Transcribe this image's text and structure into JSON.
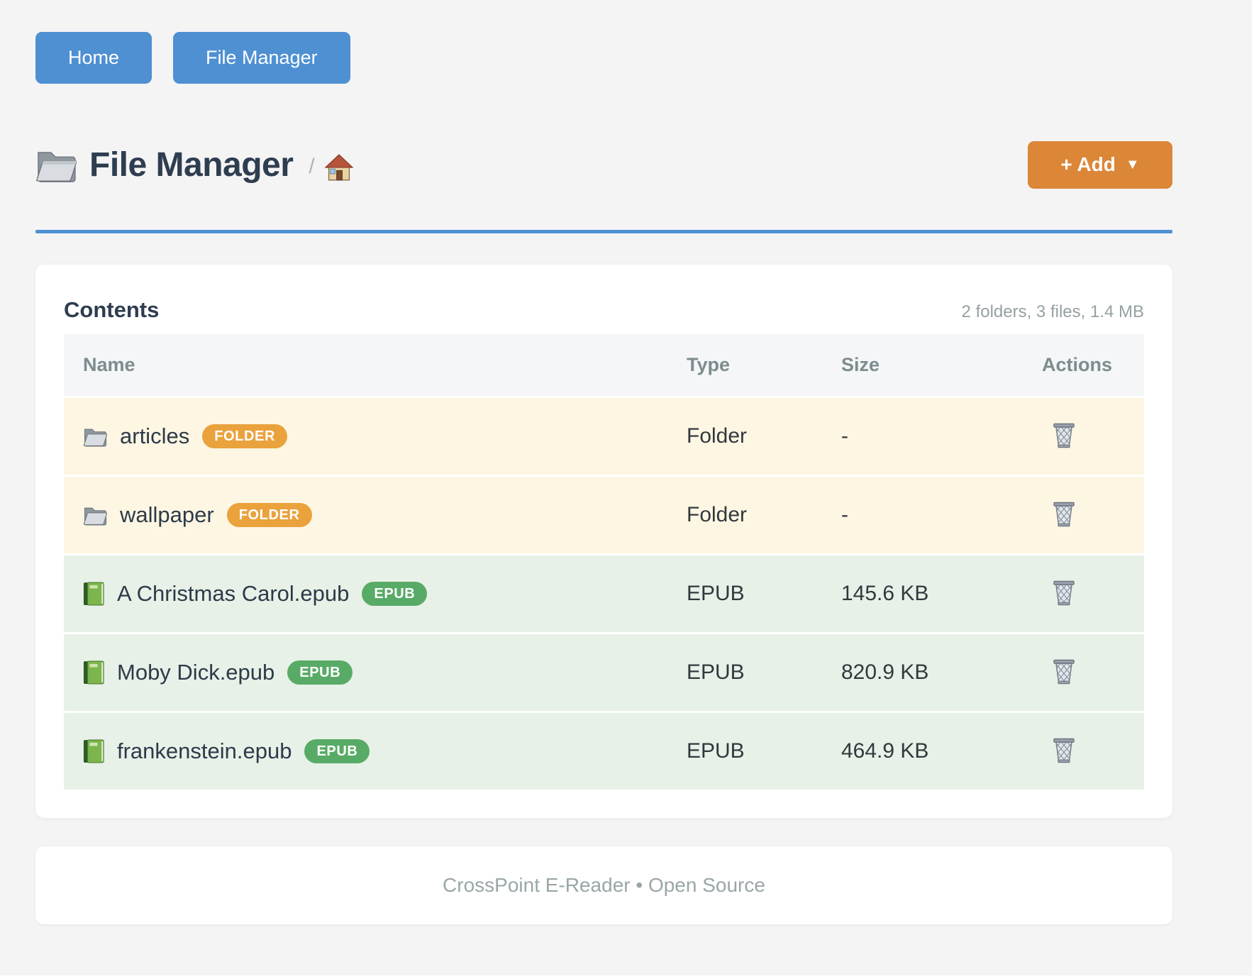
{
  "nav": {
    "home_label": "Home",
    "file_manager_label": "File Manager"
  },
  "header": {
    "title": "File Manager",
    "breadcrumb_separator": "/",
    "add_button_label": "+ Add",
    "add_button_caret": "▼"
  },
  "contents": {
    "title": "Contents",
    "summary": "2 folders, 3 files, 1.4 MB",
    "table": {
      "columns": [
        "Name",
        "Type",
        "Size",
        "Actions"
      ],
      "rows": [
        {
          "name": "articles",
          "badge": "FOLDER",
          "kind": "folder",
          "type": "Folder",
          "size": "-"
        },
        {
          "name": "wallpaper",
          "badge": "FOLDER",
          "kind": "folder",
          "type": "Folder",
          "size": "-"
        },
        {
          "name": "A Christmas Carol.epub",
          "badge": "EPUB",
          "kind": "epub",
          "type": "EPUB",
          "size": "145.6 KB"
        },
        {
          "name": "Moby Dick.epub",
          "badge": "EPUB",
          "kind": "epub",
          "type": "EPUB",
          "size": "820.9 KB"
        },
        {
          "name": "frankenstein.epub",
          "badge": "EPUB",
          "kind": "epub",
          "type": "EPUB",
          "size": "464.9 KB"
        }
      ]
    }
  },
  "footer": {
    "text": "CrossPoint E-Reader • Open Source"
  },
  "icons": {
    "title_icon": "folder-icon",
    "breadcrumb_icon": "house-icon",
    "folder_row_icon": "folder-icon",
    "epub_row_icon": "book-icon",
    "action_icon": "trash-icon"
  },
  "colors": {
    "page_bg": "#f4f4f5",
    "blue": "#4e90d2",
    "orange": "#dc8638",
    "title": "#2e3d4f",
    "folder_row_bg": "#fdf6e2",
    "epub_row_bg": "#e7f1e7",
    "folder_badge": "#eaa23c",
    "epub_badge": "#58ab66"
  }
}
